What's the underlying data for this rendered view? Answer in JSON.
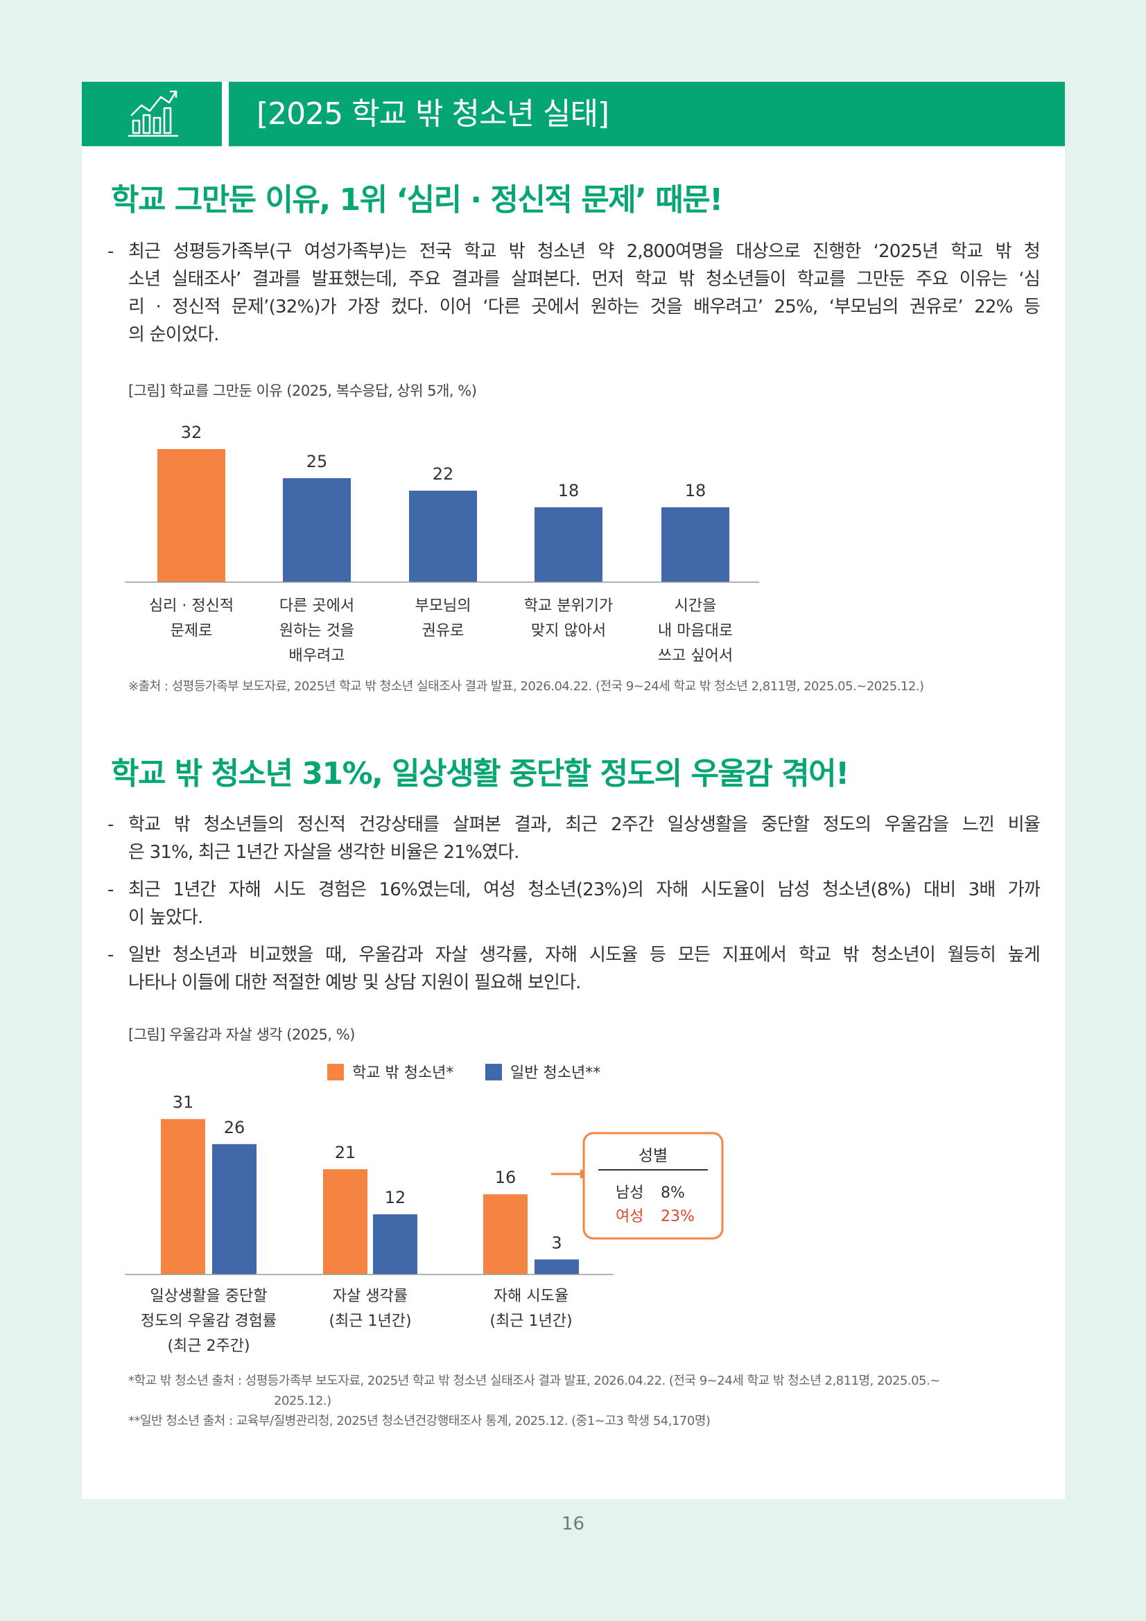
{
  "header": {
    "title": "[2025 학교 밖 청소년 실태]",
    "icon": "growth-chart-icon"
  },
  "section1": {
    "headline": "학교 그만둔 이유, 1위 ‘심리 · 정신적 문제’ 때문!",
    "paragraph_lines": [
      "최근 성평등가족부(구 여성가족부)는 전국 학교 밖 청소년 약 2,800여명을 대상으로 진행한 ‘2025년 학교 밖 청",
      "소년 실태조사’ 결과를 발표했는데, 주요 결과를 살펴본다. 먼저 학교 밖 청소년들이 학교를 그만둔 주요 이유는 ‘심",
      "리 · 정신적 문제’(32%)가 가장 컸다. 이어 ‘다른 곳에서 원하는 것을 배우려고’ 25%, ‘부모님의 권유로’ 22% 등",
      "의 순이었다."
    ],
    "caption": "[그림] 학교를 그만둔 이유 (2025, 복수응답, 상위 5개, %)",
    "source": "※출처 : 성평등가족부 보도자료, 2025년 학교 밖 청소년 실태조사 결과 발표, 2026.04.22. (전국 9~24세 학교 밖 청소년 2,811명, 2025.05.~2025.12.)"
  },
  "section2": {
    "headline": "학교 밖 청소년 31%, 일상생활 중단할 정도의 우울감 겪어!",
    "bullets": [
      [
        "학교 밖 청소년들의 정신적 건강상태를 살펴본 결과, 최근 2주간 일상생활을 중단할 정도의 우울감을 느낀 비율",
        "은 31%, 최근 1년간 자살을 생각한 비율은 21%였다."
      ],
      [
        "최근 1년간 자해 시도 경험은 16%였는데, 여성 청소년(23%)의 자해 시도율이 남성 청소년(8%) 대비 3배 가까",
        "이 높았다."
      ],
      [
        "일반 청소년과 비교했을 때, 우울감과 자살 생각률, 자해 시도율 등 모든 지표에서 학교 밖 청소년이 월등히 높게",
        "나타나 이들에 대한 적절한 예방 및 상담 지원이 필요해 보인다."
      ]
    ],
    "caption": "[그림] 우울감과 자살 생각 (2025, %)",
    "callout": {
      "title": "성별",
      "rows": [
        [
          "남성",
          "8%"
        ],
        [
          "여성",
          "23%"
        ]
      ]
    },
    "source_lines": [
      "*학교 밖 청소년 출처 : 성평등가족부 보도자료, 2025년 학교 밖 청소년 실태조사 결과 발표, 2026.04.22. (전국 9~24세 학교 밖 청소년 2,811명, 2025.05.~",
      "2025.12.)",
      "**일반 청소년 출처 : 교육부/질병관리청, 2025년 청소년건강행태조사 통계, 2025.12. (중1~고3 학생 54,170명)"
    ]
  },
  "page_number": "16",
  "colors": {
    "accent": "#05a574",
    "orange": "#f58442",
    "blue": "#4168a8",
    "callout_red": "#e0442a"
  },
  "chart_data": [
    {
      "type": "bar",
      "categories": [
        [
          "심리 · 정신적",
          "문제로"
        ],
        [
          "다른 곳에서",
          "원하는 것을",
          "배우려고"
        ],
        [
          "부모님의",
          "권유로"
        ],
        [
          "학교 분위기가",
          "맞지 않아서"
        ],
        [
          "시간을",
          "내 마음대로",
          "쓰고 싶어서"
        ]
      ],
      "values": [
        32,
        25,
        22,
        18,
        18
      ],
      "highlight_index": 0,
      "ylim": [
        0,
        35
      ]
    },
    {
      "type": "bar",
      "categories": [
        [
          "일상생활을 중단할",
          "정도의 우울감 경험률",
          "(최근 2주간)"
        ],
        [
          "자살 생각률",
          "(최근 1년간)"
        ],
        [
          "자해 시도율",
          "(최근 1년간)"
        ]
      ],
      "series": [
        {
          "name": "학교 밖 청소년*",
          "values": [
            31,
            21,
            16
          ]
        },
        {
          "name": "일반 청소년**",
          "values": [
            26,
            12,
            3
          ]
        }
      ],
      "legend": "top",
      "ylim": [
        0,
        34
      ]
    }
  ]
}
